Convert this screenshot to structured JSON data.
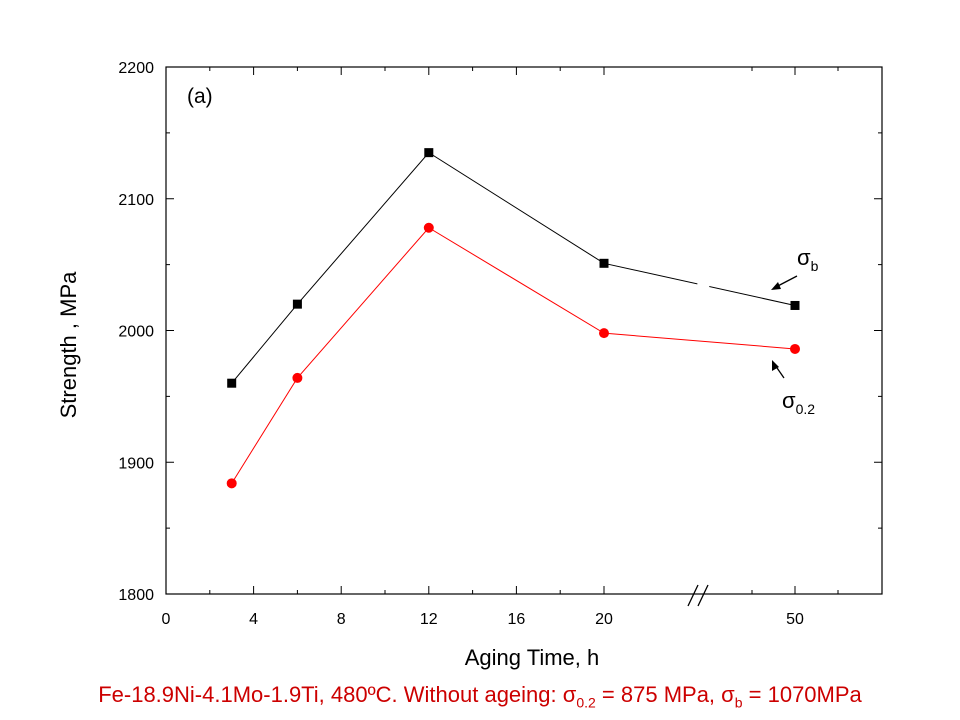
{
  "chart_data": {
    "type": "line",
    "panel_label": "(a)",
    "xlabel": "Aging Time,  h",
    "ylabel": "Strength ,  MPa",
    "x_tick_labels": [
      "0",
      "4",
      "8",
      "12",
      "16",
      "20",
      "50"
    ],
    "y_tick_labels": [
      "1800",
      "1900",
      "2000",
      "2100",
      "2200"
    ],
    "ylim": [
      1800,
      2200
    ],
    "x_axis_break": "between 20 and 50",
    "x": [
      3,
      6,
      12,
      20,
      50
    ],
    "series": [
      {
        "name": "σb",
        "marker": "square",
        "color": "#000000",
        "values": [
          1960,
          2020,
          2135,
          2051,
          2019
        ]
      },
      {
        "name": "σ0.2",
        "marker": "circle",
        "color": "#ff0000",
        "values": [
          1884,
          1964,
          2078,
          1998,
          1986
        ]
      }
    ],
    "annotations": {
      "sigma_b": {
        "symbol": "σ",
        "sub": "b"
      },
      "sigma_02": {
        "symbol": "σ",
        "sub": "0.2"
      }
    },
    "grid": false
  },
  "caption": {
    "main": "Fe-18.9Ni-4.1Mo-1.9Ti, 480ºC. Without ageing: σ",
    "sub1": "0.2",
    "mid": " = 875 MPa, σ",
    "sub2": "b",
    "end": " = 1070MPa"
  }
}
